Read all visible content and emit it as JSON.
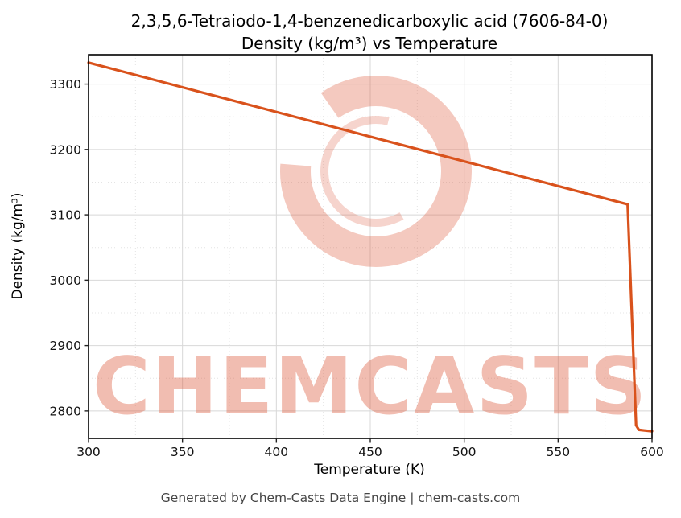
{
  "title": {
    "line1": "2,3,5,6-Tetraiodo-1,4-benzenedicarboxylic acid (7606-84-0)",
    "line2": "Density (kg/m³) vs Temperature"
  },
  "axes": {
    "xlabel": "Temperature (K)",
    "ylabel": "Density (kg/m³)"
  },
  "watermark": {
    "text": "CHEMCASTS",
    "logo": "chemcasts-ring-logo"
  },
  "footer": {
    "text": "Generated by Chem-Casts Data Engine | chem-casts.com"
  },
  "colors": {
    "line": "#d9521c",
    "watermark": "#dd5a3c",
    "grid_major": "#d8d8d8",
    "grid_minor": "#e4e4e4"
  },
  "chart_data": {
    "type": "line",
    "title": "2,3,5,6-Tetraiodo-1,4-benzenedicarboxylic acid (7606-84-0)",
    "subtitle": "Density (kg/m³) vs Temperature",
    "xlabel": "Temperature (K)",
    "ylabel": "Density (kg/m³)",
    "xlim": [
      300,
      600
    ],
    "ylim": [
      2758,
      3345
    ],
    "xticks": [
      300,
      350,
      400,
      450,
      500,
      550,
      600
    ],
    "yticks": [
      2800,
      2900,
      3000,
      3100,
      3200,
      3300
    ],
    "grid": true,
    "legend": false,
    "series": [
      {
        "name": "Density",
        "color": "#d9521c",
        "points": [
          [
            300,
            3333
          ],
          [
            587,
            3116
          ],
          [
            591.5,
            2778
          ],
          [
            593,
            2771
          ],
          [
            596,
            2770
          ],
          [
            600,
            2769
          ]
        ]
      }
    ]
  }
}
